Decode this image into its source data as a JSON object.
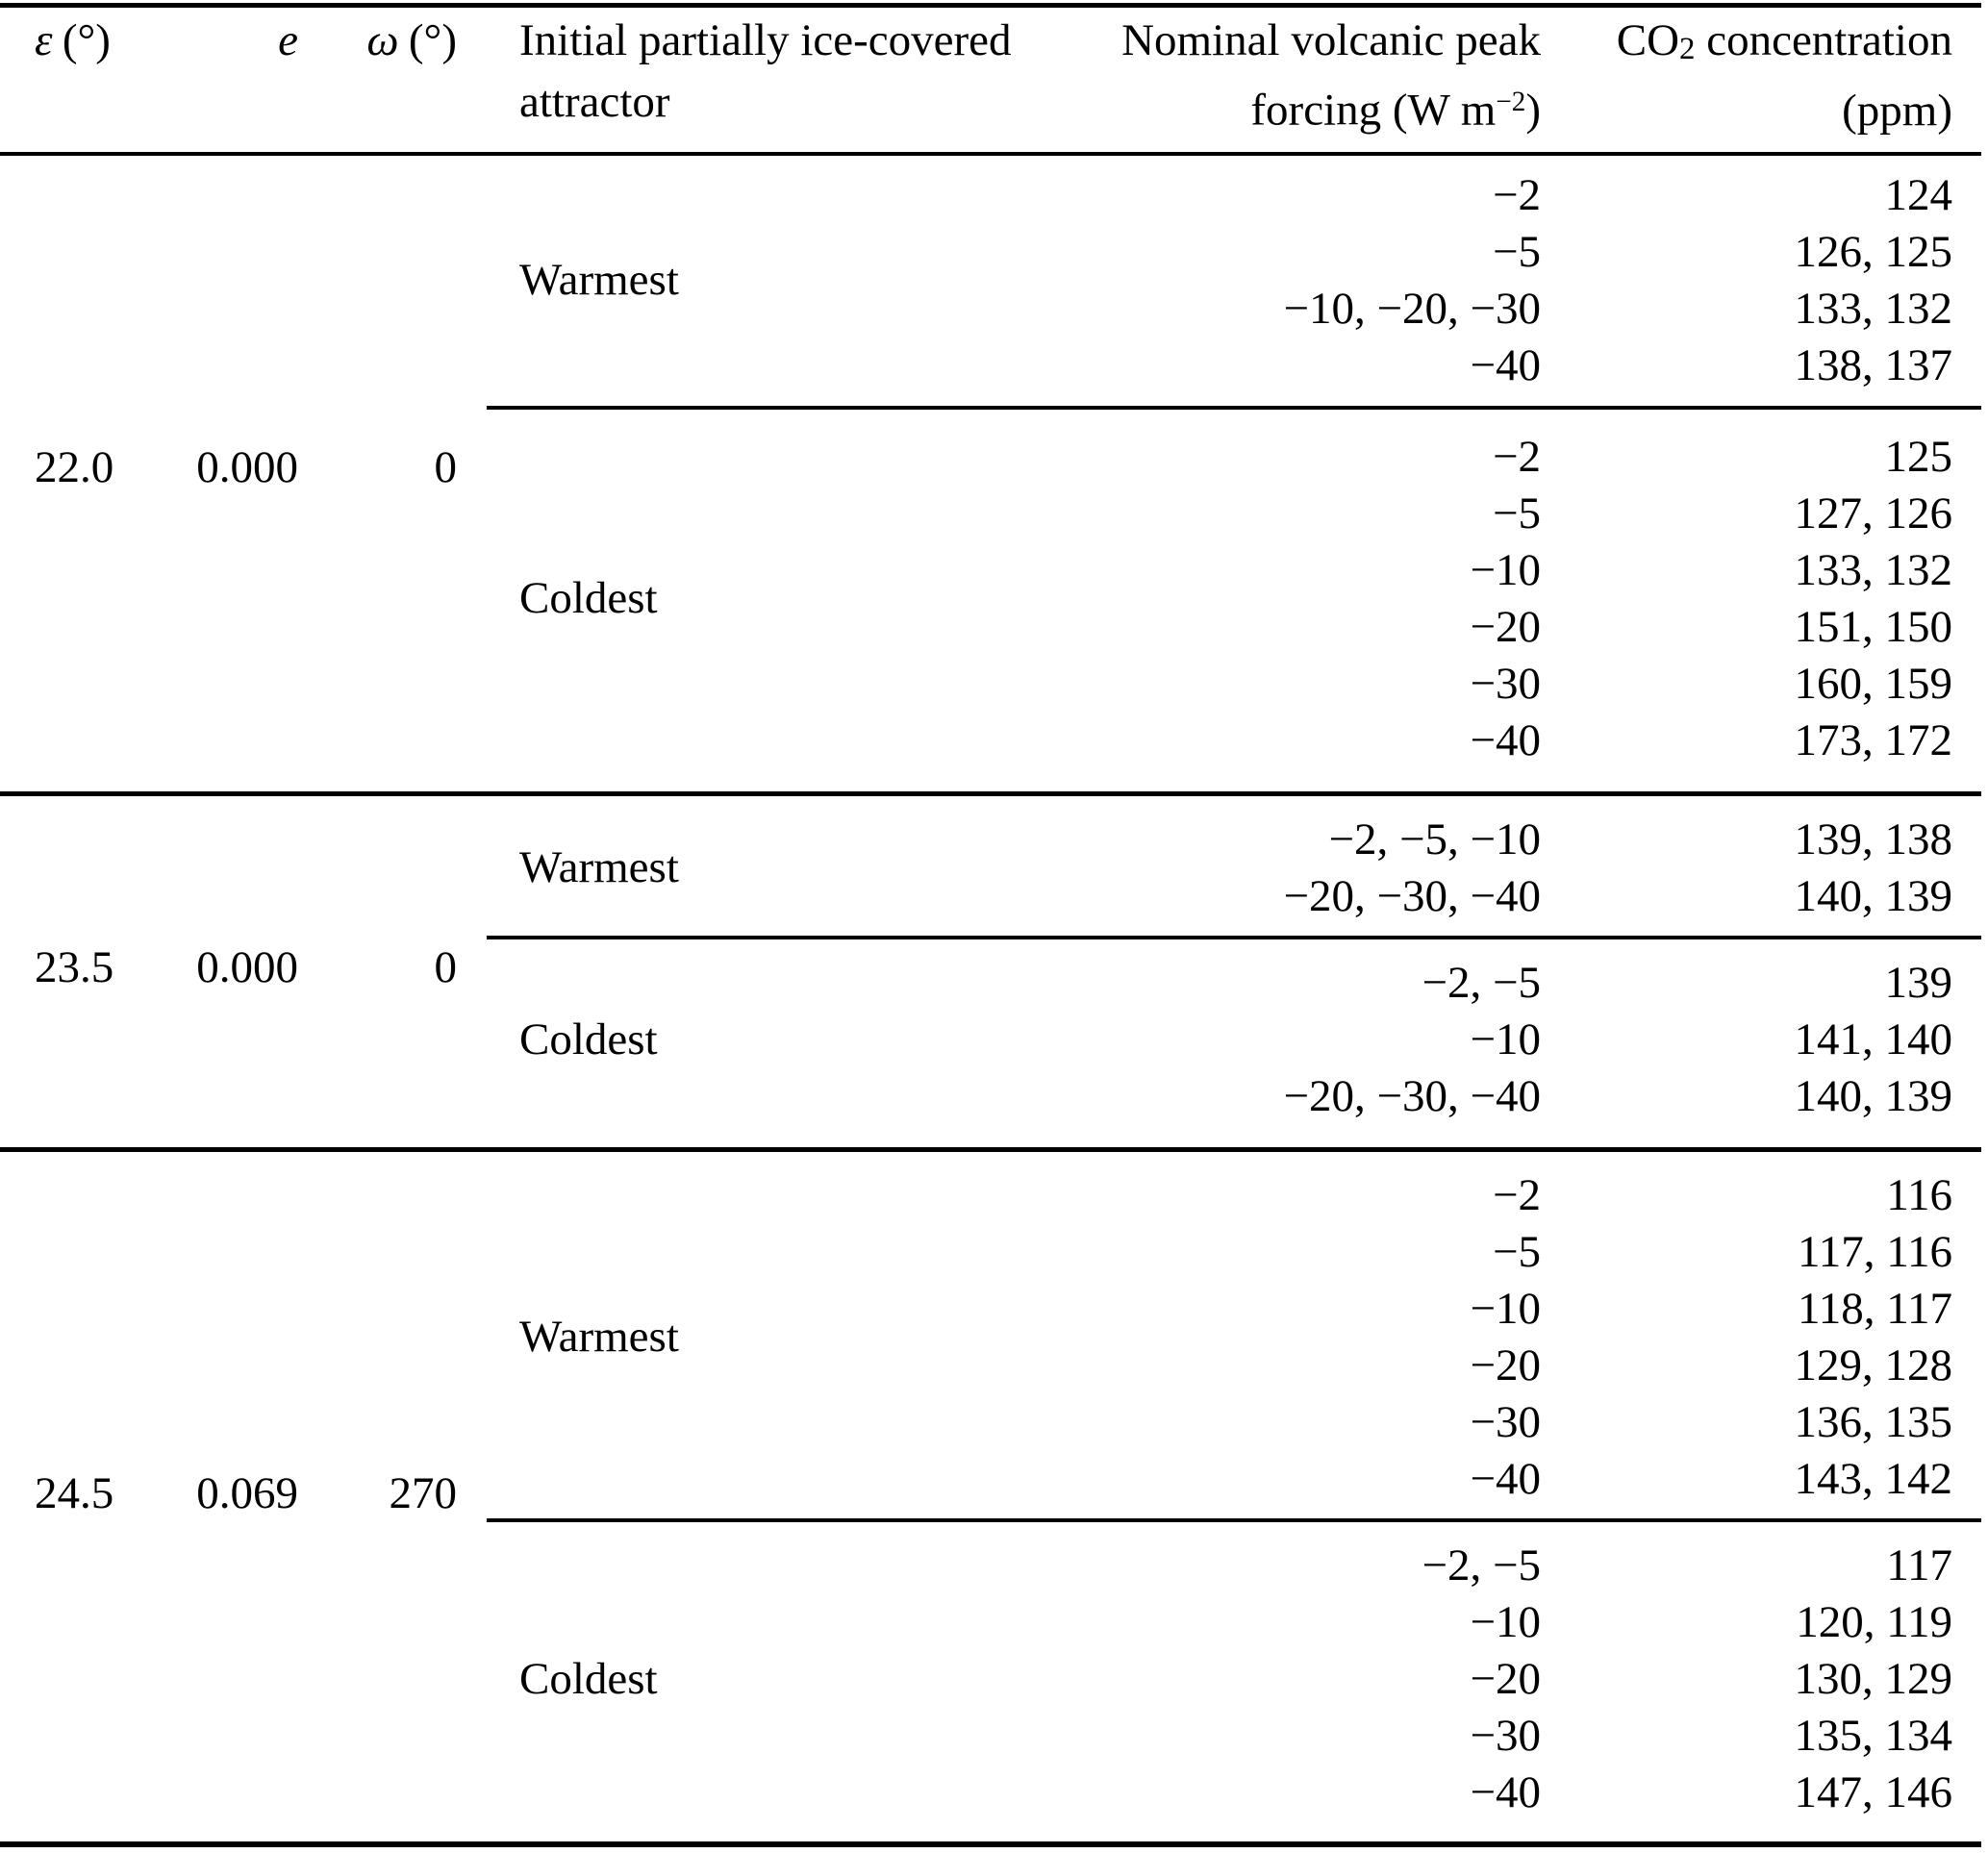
{
  "colors": {
    "text": "#000000",
    "background": "#ffffff",
    "rules": "#000000"
  },
  "chart_data": {
    "type": "table",
    "columns": {
      "epsilon_symbol": "ε",
      "epsilon_unit": "(°)",
      "e_symbol": "e",
      "omega_symbol": "ω",
      "omega_unit": "(°)",
      "attractor_line1": "Initial partially ice-covered",
      "attractor_line2": "attractor",
      "forcing_line1": "Nominal volcanic peak",
      "forcing_line2_pre": "forcing (W m",
      "forcing_superscript": "−2",
      "forcing_line2_post": ")",
      "co2_pre": "CO",
      "co2_sub": "2",
      "co2_post": " concentration",
      "co2_line2": "(ppm)"
    },
    "sections": [
      {
        "epsilon": "22.0",
        "e": "0.000",
        "omega": "0",
        "blocks": [
          {
            "attractor": "Warmest",
            "rows": [
              {
                "forcing": "−2",
                "co2": "124"
              },
              {
                "forcing": "−5",
                "co2": "126, 125"
              },
              {
                "forcing": "−10, −20, −30",
                "co2": "133, 132"
              },
              {
                "forcing": "−40",
                "co2": "138, 137"
              }
            ]
          },
          {
            "attractor": "Coldest",
            "rows": [
              {
                "forcing": "−2",
                "co2": "125"
              },
              {
                "forcing": "−5",
                "co2": "127, 126"
              },
              {
                "forcing": "−10",
                "co2": "133, 132"
              },
              {
                "forcing": "−20",
                "co2": "151, 150"
              },
              {
                "forcing": "−30",
                "co2": "160, 159"
              },
              {
                "forcing": "−40",
                "co2": "173, 172"
              }
            ]
          }
        ]
      },
      {
        "epsilon": "23.5",
        "e": "0.000",
        "omega": "0",
        "blocks": [
          {
            "attractor": "Warmest",
            "rows": [
              {
                "forcing": "−2, −5, −10",
                "co2": "139, 138"
              },
              {
                "forcing": "−20, −30, −40",
                "co2": "140, 139"
              }
            ]
          },
          {
            "attractor": "Coldest",
            "rows": [
              {
                "forcing": "−2, −5",
                "co2": "139"
              },
              {
                "forcing": "−10",
                "co2": "141, 140"
              },
              {
                "forcing": "−20, −30, −40",
                "co2": "140, 139"
              }
            ]
          }
        ]
      },
      {
        "epsilon": "24.5",
        "e": "0.069",
        "omega": "270",
        "blocks": [
          {
            "attractor": "Warmest",
            "rows": [
              {
                "forcing": "−2",
                "co2": "116"
              },
              {
                "forcing": "−5",
                "co2": "117, 116"
              },
              {
                "forcing": "−10",
                "co2": "118, 117"
              },
              {
                "forcing": "−20",
                "co2": "129, 128"
              },
              {
                "forcing": "−30",
                "co2": "136, 135"
              },
              {
                "forcing": "−40",
                "co2": "143, 142"
              }
            ]
          },
          {
            "attractor": "Coldest",
            "rows": [
              {
                "forcing": "−2, −5",
                "co2": "117"
              },
              {
                "forcing": "−10",
                "co2": "120, 119"
              },
              {
                "forcing": "−20",
                "co2": "130, 129"
              },
              {
                "forcing": "−30",
                "co2": "135, 134"
              },
              {
                "forcing": "−40",
                "co2": "147, 146"
              }
            ]
          }
        ]
      }
    ]
  }
}
